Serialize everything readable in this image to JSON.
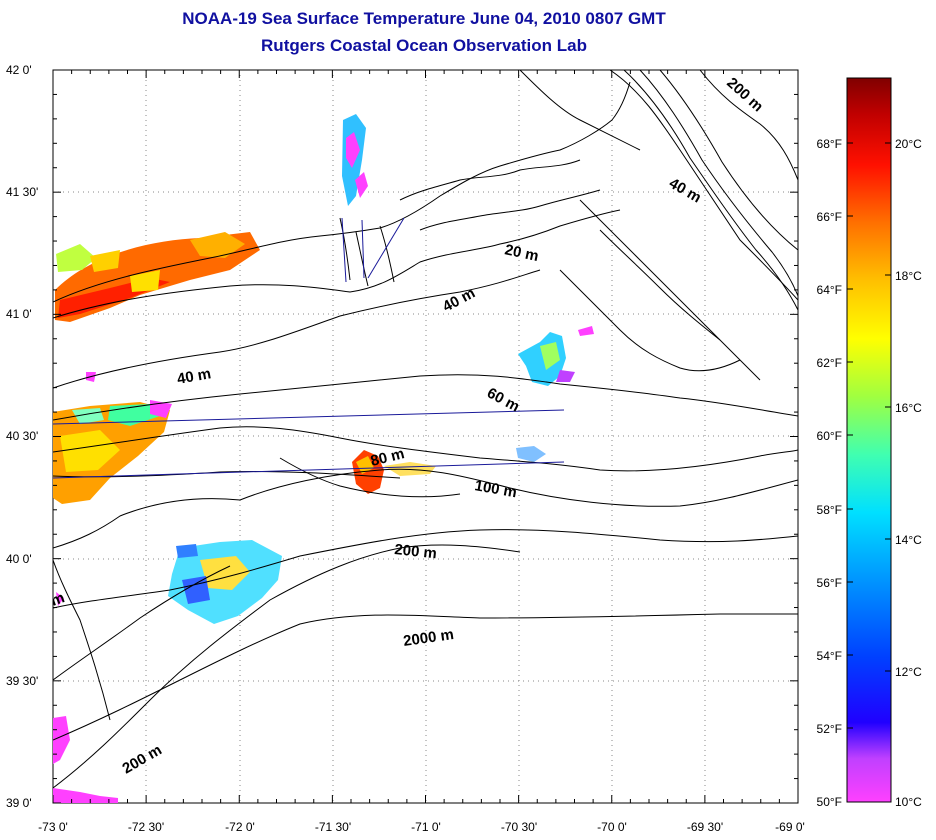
{
  "header": {
    "title": "NOAA-19 Sea Surface Temperature June 04, 2010 0807 GMT",
    "subtitle": "Rutgers Coastal Ocean Observation Lab"
  },
  "axes": {
    "lon_ticks": [
      "-73 0'",
      "-72 30'",
      "-72 0'",
      "-71 30'",
      "-71 0'",
      "-70 30'",
      "-70 0'",
      "-69 30'",
      "-69 0'"
    ],
    "lat_ticks": [
      "42 0'",
      "41 30'",
      "41 0'",
      "40 30'",
      "40 0'",
      "39 30'",
      "39 0'"
    ],
    "lon_range": [
      -73,
      -69
    ],
    "lat_range": [
      39,
      42
    ]
  },
  "contours": [
    {
      "label": "200 m"
    },
    {
      "label": "40 m"
    },
    {
      "label": "20 m"
    },
    {
      "label": "40 m"
    },
    {
      "label": "40 m"
    },
    {
      "label": "60 m"
    },
    {
      "label": "80 m"
    },
    {
      "label": "100 m"
    },
    {
      "label": "200 m"
    },
    {
      "label": "2000 m"
    },
    {
      "label": "200 m"
    },
    {
      "label": "m"
    }
  ],
  "colorbar": {
    "fahrenheit": [
      "68°F",
      "66°F",
      "64°F",
      "62°F",
      "60°F",
      "58°F",
      "56°F",
      "54°F",
      "52°F",
      "50°F"
    ],
    "celsius": [
      "20°C",
      "18°C",
      "16°C",
      "14°C",
      "12°C",
      "10°C"
    ],
    "colors": [
      "#800000",
      "#ff0000",
      "#ff8000",
      "#ffff00",
      "#80ff00",
      "#00ffff",
      "#0080ff",
      "#0000ff",
      "#8000ff",
      "#ff00ff"
    ]
  }
}
